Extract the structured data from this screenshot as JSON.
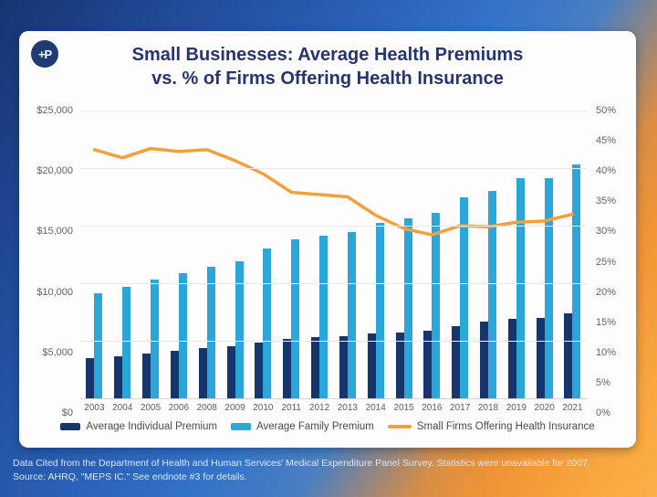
{
  "logo": {
    "monogram": "+P"
  },
  "header": {
    "title_line1": "Small Businesses: Average Health Premiums",
    "title_line2": "vs. % of Firms Offering Health Insurance"
  },
  "chart_data": {
    "type": "bar",
    "title": "Small Businesses: Average Health Premiums vs. % of Firms Offering Health Insurance",
    "categories": [
      "2003",
      "2004",
      "2005",
      "2006",
      "2008",
      "2009",
      "2010",
      "2011",
      "2012",
      "2013",
      "2014",
      "2015",
      "2016",
      "2017",
      "2018",
      "2019",
      "2020",
      "2021"
    ],
    "series": [
      {
        "name": "Average Individual Premium",
        "type": "bar",
        "axis": "left",
        "color": "#17356d",
        "values": [
          3500,
          3650,
          3900,
          4150,
          4350,
          4550,
          4850,
          5150,
          5350,
          5400,
          5650,
          5700,
          5850,
          6300,
          6650,
          6900,
          7000,
          7400
        ]
      },
      {
        "name": "Average Family Premium",
        "type": "bar",
        "axis": "left",
        "color": "#2aa7d8",
        "values": [
          9100,
          9650,
          10350,
          10900,
          11400,
          11900,
          13000,
          13800,
          14100,
          14450,
          15200,
          15650,
          16100,
          17500,
          18000,
          19150,
          19150,
          20300
        ]
      },
      {
        "name": "Small Firms Offering Health Insurance",
        "type": "line",
        "axis": "right",
        "color": "#f2a03c",
        "values": [
          43.2,
          41.8,
          43.4,
          42.9,
          43.2,
          41.3,
          39.0,
          35.8,
          35.4,
          35.0,
          31.8,
          29.5,
          28.4,
          30.0,
          29.8,
          30.6,
          30.8,
          32.0
        ]
      }
    ],
    "left_axis": {
      "min": 0,
      "max": 25000,
      "ticks": [
        "$25,000",
        "$20,000",
        "$15,000",
        "$10,000",
        "$5,000",
        "$0"
      ]
    },
    "right_axis": {
      "min": 0,
      "max": 50,
      "ticks": [
        "50%",
        "45%",
        "40%",
        "35%",
        "30%",
        "25%",
        "20%",
        "15%",
        "10%",
        "5%",
        "0%"
      ]
    },
    "grid": true,
    "legend_position": "bottom"
  },
  "footer": {
    "line1": "Data Cited from the Department of Health and Human Services' Medical Expenditure Panel Survey. Statistics were unavailable for 2007.",
    "line2": "Source: AHRQ, \"MEPS IC.\" See endnote #3 for details."
  }
}
